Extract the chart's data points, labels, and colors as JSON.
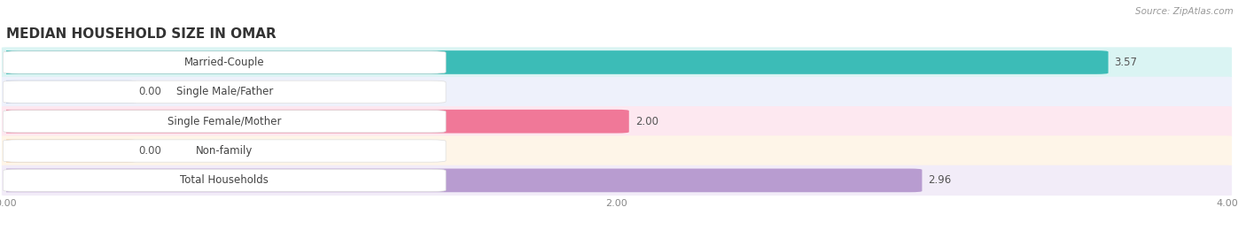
{
  "title": "MEDIAN HOUSEHOLD SIZE IN OMAR",
  "source": "Source: ZipAtlas.com",
  "categories": [
    "Married-Couple",
    "Single Male/Father",
    "Single Female/Mother",
    "Non-family",
    "Total Households"
  ],
  "values": [
    3.57,
    0.0,
    2.0,
    0.0,
    2.96
  ],
  "bar_colors": [
    "#3cbcb7",
    "#a8bce8",
    "#f07898",
    "#f5c89a",
    "#b89cd0"
  ],
  "bar_bg_colors": [
    "#daf4f3",
    "#eef1fb",
    "#fde8f0",
    "#fef5e8",
    "#f2ecf8"
  ],
  "row_bg_colors": [
    "#ffffff",
    "#f8f8f8",
    "#ffffff",
    "#f8f8f8",
    "#ffffff"
  ],
  "xlim": [
    0,
    4.0
  ],
  "xticks": [
    0.0,
    2.0,
    4.0
  ],
  "title_fontsize": 11,
  "label_fontsize": 8.5,
  "value_fontsize": 8.5,
  "tick_fontsize": 8,
  "background_color": "#ffffff"
}
